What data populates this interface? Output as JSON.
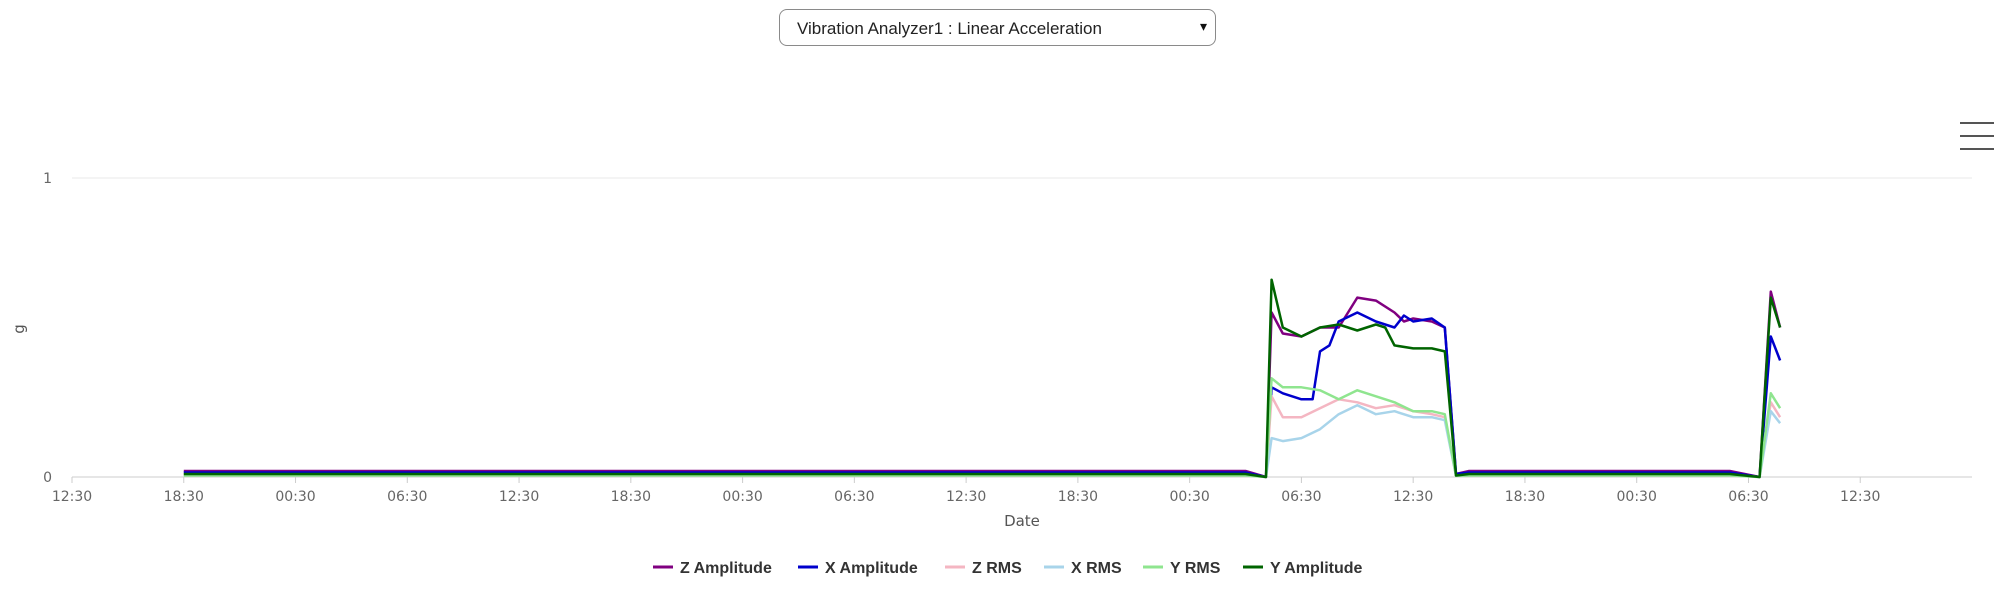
{
  "selector": {
    "label": "Vibration Analyzer1 : Linear Acceleration",
    "caret": "▾"
  },
  "menu": {
    "icon": "hamburger-menu-icon"
  },
  "chart_data": {
    "type": "line",
    "xlabel": "Date",
    "ylabel": "g",
    "ylim": [
      0,
      1
    ],
    "y_ticks": [
      "0",
      "1"
    ],
    "x_ticks": [
      "12:30",
      "18:30",
      "00:30",
      "06:30",
      "12:30",
      "18:30",
      "00:30",
      "06:30",
      "12:30",
      "18:30",
      "00:30",
      "06:30",
      "12:30",
      "18:30",
      "00:30",
      "06:30",
      "12:30"
    ],
    "x_range_hours": [
      0,
      102
    ],
    "grid": "horizontal",
    "legend_position": "bottom-center",
    "series": [
      {
        "name": "Z Amplitude",
        "color": "#800080",
        "points": [
          [
            6,
            0.02
          ],
          [
            63,
            0.02
          ],
          [
            64.1,
            0
          ],
          [
            64.4,
            0.55
          ],
          [
            65,
            0.48
          ],
          [
            66,
            0.47
          ],
          [
            67,
            0.5
          ],
          [
            68,
            0.5
          ],
          [
            69,
            0.6
          ],
          [
            70,
            0.59
          ],
          [
            71,
            0.55
          ],
          [
            71.5,
            0.52
          ],
          [
            72,
            0.53
          ],
          [
            73,
            0.52
          ],
          [
            73.7,
            0.5
          ],
          [
            74.3,
            0.01
          ],
          [
            75,
            0.02
          ],
          [
            89,
            0.02
          ],
          [
            90.6,
            0
          ],
          [
            91.2,
            0.62
          ],
          [
            91.7,
            0.5
          ]
        ]
      },
      {
        "name": "X Amplitude",
        "color": "#0000cc",
        "points": [
          [
            6,
            0.015
          ],
          [
            63,
            0.015
          ],
          [
            64.1,
            0
          ],
          [
            64.4,
            0.3
          ],
          [
            65,
            0.28
          ],
          [
            66,
            0.26
          ],
          [
            66.6,
            0.26
          ],
          [
            67,
            0.42
          ],
          [
            67.5,
            0.44
          ],
          [
            68,
            0.52
          ],
          [
            69,
            0.55
          ],
          [
            70,
            0.52
          ],
          [
            71,
            0.5
          ],
          [
            71.5,
            0.54
          ],
          [
            72,
            0.52
          ],
          [
            73,
            0.53
          ],
          [
            73.7,
            0.5
          ],
          [
            74.3,
            0.01
          ],
          [
            75,
            0.015
          ],
          [
            89,
            0.015
          ],
          [
            90.6,
            0
          ],
          [
            91.2,
            0.47
          ],
          [
            91.7,
            0.39
          ]
        ]
      },
      {
        "name": "Z RMS",
        "color": "#f4b6c2",
        "points": [
          [
            6,
            0.008
          ],
          [
            63,
            0.008
          ],
          [
            64.1,
            0
          ],
          [
            64.4,
            0.27
          ],
          [
            65,
            0.2
          ],
          [
            66,
            0.2
          ],
          [
            67,
            0.23
          ],
          [
            68,
            0.26
          ],
          [
            69,
            0.25
          ],
          [
            70,
            0.23
          ],
          [
            71,
            0.24
          ],
          [
            72,
            0.22
          ],
          [
            73,
            0.21
          ],
          [
            73.7,
            0.2
          ],
          [
            74.3,
            0.005
          ],
          [
            75,
            0.008
          ],
          [
            89,
            0.008
          ],
          [
            90.6,
            0
          ],
          [
            91.2,
            0.25
          ],
          [
            91.7,
            0.2
          ]
        ]
      },
      {
        "name": "X RMS",
        "color": "#a8d4ea",
        "points": [
          [
            6,
            0.006
          ],
          [
            63,
            0.006
          ],
          [
            64.1,
            0
          ],
          [
            64.4,
            0.13
          ],
          [
            65,
            0.12
          ],
          [
            66,
            0.13
          ],
          [
            67,
            0.16
          ],
          [
            68,
            0.21
          ],
          [
            69,
            0.24
          ],
          [
            70,
            0.21
          ],
          [
            71,
            0.22
          ],
          [
            72,
            0.2
          ],
          [
            73,
            0.2
          ],
          [
            73.7,
            0.19
          ],
          [
            74.3,
            0.004
          ],
          [
            75,
            0.006
          ],
          [
            89,
            0.006
          ],
          [
            90.6,
            0
          ],
          [
            91.2,
            0.22
          ],
          [
            91.7,
            0.18
          ]
        ]
      },
      {
        "name": "Y RMS",
        "color": "#8fe58f",
        "points": [
          [
            6,
            0.005
          ],
          [
            63,
            0.005
          ],
          [
            64.1,
            0
          ],
          [
            64.4,
            0.33
          ],
          [
            65,
            0.3
          ],
          [
            66,
            0.3
          ],
          [
            67,
            0.29
          ],
          [
            68,
            0.26
          ],
          [
            69,
            0.29
          ],
          [
            70,
            0.27
          ],
          [
            71,
            0.25
          ],
          [
            72,
            0.22
          ],
          [
            73,
            0.22
          ],
          [
            73.7,
            0.21
          ],
          [
            74.3,
            0.004
          ],
          [
            75,
            0.005
          ],
          [
            89,
            0.005
          ],
          [
            90.6,
            0
          ],
          [
            91.2,
            0.28
          ],
          [
            91.7,
            0.23
          ]
        ]
      },
      {
        "name": "Y Amplitude",
        "color": "#006400",
        "points": [
          [
            6,
            0.01
          ],
          [
            63,
            0.01
          ],
          [
            64.1,
            0
          ],
          [
            64.4,
            0.66
          ],
          [
            65,
            0.5
          ],
          [
            66,
            0.47
          ],
          [
            67,
            0.5
          ],
          [
            68,
            0.51
          ],
          [
            69,
            0.49
          ],
          [
            70,
            0.51
          ],
          [
            70.5,
            0.5
          ],
          [
            71,
            0.44
          ],
          [
            72,
            0.43
          ],
          [
            73,
            0.43
          ],
          [
            73.7,
            0.42
          ],
          [
            74.3,
            0.005
          ],
          [
            75,
            0.01
          ],
          [
            89,
            0.01
          ],
          [
            90.6,
            0
          ],
          [
            91.2,
            0.6
          ],
          [
            91.7,
            0.5
          ]
        ]
      }
    ]
  }
}
